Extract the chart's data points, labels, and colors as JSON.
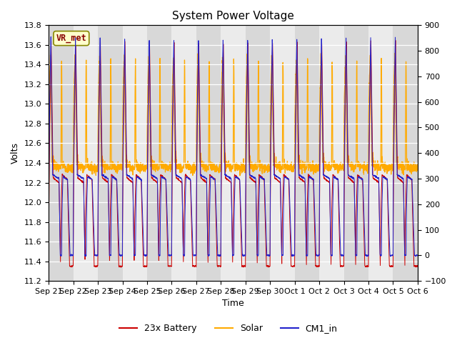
{
  "title": "System Power Voltage",
  "xlabel": "Time",
  "ylabel_left": "Volts",
  "ylim_left": [
    11.2,
    13.8
  ],
  "ylim_right": [
    -100,
    900
  ],
  "yticks_left": [
    11.2,
    11.4,
    11.6,
    11.8,
    12.0,
    12.2,
    12.4,
    12.6,
    12.8,
    13.0,
    13.2,
    13.4,
    13.6,
    13.8
  ],
  "yticks_right": [
    -100,
    0,
    100,
    200,
    300,
    400,
    500,
    600,
    700,
    800,
    900
  ],
  "xtick_labels": [
    "Sep 21",
    "Sep 22",
    "Sep 23",
    "Sep 24",
    "Sep 25",
    "Sep 26",
    "Sep 27",
    "Sep 28",
    "Sep 29",
    "Sep 30",
    "Oct 1",
    "Oct 2",
    "Oct 3",
    "Oct 4",
    "Oct 5",
    "Oct 6"
  ],
  "bg_color": "#ffffff",
  "band_color_dark": "#d8d8d8",
  "band_color_light": "#ebebeb",
  "grid_color": "#ffffff",
  "legend_labels": [
    "23x Battery",
    "Solar",
    "CM1_in"
  ],
  "line_colors": {
    "battery": "#cc0000",
    "solar": "#ffaa00",
    "cm1": "#2222cc"
  },
  "vr_met_label": "VR_met",
  "vr_met_fg": "#880000",
  "vr_met_bg": "#ffffcc",
  "vr_met_edge": "#888800",
  "n_days": 15
}
